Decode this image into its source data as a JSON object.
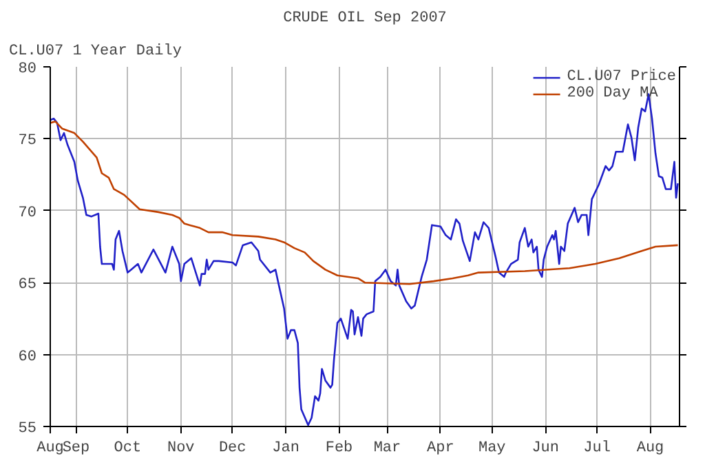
{
  "chart_data": {
    "type": "line",
    "title": "CRUDE OIL Sep 2007",
    "annotations": [
      "CL.U07 1 Year Daily"
    ],
    "xlim": [
      "2006-08-17",
      "2007-08-18"
    ],
    "ylim": [
      55,
      80
    ],
    "yticks": [
      55,
      60,
      65,
      70,
      75,
      80
    ],
    "xticks": [
      {
        "value": "2006-08-17",
        "label": "Aug"
      },
      {
        "value": "2006-09-01",
        "label": "Sep"
      },
      {
        "value": "2006-10-01",
        "label": "Oct"
      },
      {
        "value": "2006-11-01",
        "label": "Nov"
      },
      {
        "value": "2006-12-01",
        "label": "Dec"
      },
      {
        "value": "2007-01-01",
        "label": "Jan"
      },
      {
        "value": "2007-02-01",
        "label": "Feb"
      },
      {
        "value": "2007-03-01",
        "label": "Mar"
      },
      {
        "value": "2007-04-01",
        "label": "Apr"
      },
      {
        "value": "2007-05-01",
        "label": "May"
      },
      {
        "value": "2007-06-01",
        "label": "Jun"
      },
      {
        "value": "2007-07-01",
        "label": "Jul"
      },
      {
        "value": "2007-08-01",
        "label": "Aug"
      }
    ],
    "grid": true,
    "legend": "top right",
    "line_style": "solid",
    "series": [
      {
        "name": "CL.U07 Price",
        "color": "#2020c8",
        "x": [
          "2006-08-17",
          "2006-08-19",
          "2006-08-21",
          "2006-08-23",
          "2006-08-25",
          "2006-08-27",
          "2006-08-29",
          "2006-08-31",
          "2006-09-02",
          "2006-09-05",
          "2006-09-07",
          "2006-09-10",
          "2006-09-14",
          "2006-09-15",
          "2006-09-16",
          "2006-09-22",
          "2006-09-23",
          "2006-09-24",
          "2006-09-26",
          "2006-09-28",
          "2006-10-01",
          "2006-10-03",
          "2006-10-07",
          "2006-10-09",
          "2006-10-16",
          "2006-10-23",
          "2006-10-27",
          "2006-10-31",
          "2006-11-01",
          "2006-11-03",
          "2006-11-07",
          "2006-11-12",
          "2006-11-13",
          "2006-11-15",
          "2006-11-16",
          "2006-11-17",
          "2006-11-20",
          "2006-11-23",
          "2006-12-01",
          "2006-12-03",
          "2006-12-07",
          "2006-12-12",
          "2006-12-16",
          "2006-12-17",
          "2006-12-23",
          "2006-12-26",
          "2006-12-28",
          "2006-12-31",
          "2007-01-02",
          "2007-01-04",
          "2007-01-06",
          "2007-01-08",
          "2007-01-09",
          "2007-01-10",
          "2007-01-14",
          "2007-01-16",
          "2007-01-18",
          "2007-01-20",
          "2007-01-21",
          "2007-01-22",
          "2007-01-24",
          "2007-01-27",
          "2007-01-28",
          "2007-01-29",
          "2007-01-31",
          "2007-02-02",
          "2007-02-06",
          "2007-02-08",
          "2007-02-09",
          "2007-02-10",
          "2007-02-12",
          "2007-02-14",
          "2007-02-15",
          "2007-02-17",
          "2007-02-21",
          "2007-02-22",
          "2007-02-25",
          "2007-02-28",
          "2007-03-03",
          "2007-03-06",
          "2007-03-07",
          "2007-03-08",
          "2007-03-12",
          "2007-03-15",
          "2007-03-17",
          "2007-03-21",
          "2007-03-24",
          "2007-03-27",
          "2007-04-01",
          "2007-04-04",
          "2007-04-07",
          "2007-04-10",
          "2007-04-12",
          "2007-04-14",
          "2007-04-18",
          "2007-04-21",
          "2007-04-23",
          "2007-04-26",
          "2007-04-29",
          "2007-05-03",
          "2007-05-05",
          "2007-05-08",
          "2007-05-09",
          "2007-05-12",
          "2007-05-16",
          "2007-05-17",
          "2007-05-20",
          "2007-05-22",
          "2007-05-24",
          "2007-05-25",
          "2007-05-27",
          "2007-05-28",
          "2007-05-30",
          "2007-05-31",
          "2007-06-02",
          "2007-06-05",
          "2007-06-06",
          "2007-06-07",
          "2007-06-09",
          "2007-06-10",
          "2007-06-12",
          "2007-06-14",
          "2007-06-18",
          "2007-06-20",
          "2007-06-22",
          "2007-06-25",
          "2007-06-26",
          "2007-06-28",
          "2007-07-02",
          "2007-07-06",
          "2007-07-08",
          "2007-07-10",
          "2007-07-12",
          "2007-07-16",
          "2007-07-19",
          "2007-07-21",
          "2007-07-23",
          "2007-07-25",
          "2007-07-27",
          "2007-07-29",
          "2007-07-31",
          "2007-08-02",
          "2007-08-04",
          "2007-08-06",
          "2007-08-08",
          "2007-08-10",
          "2007-08-13",
          "2007-08-15",
          "2007-08-16",
          "2007-08-17"
        ],
        "values": [
          76.3,
          76.4,
          76.1,
          74.9,
          75.4,
          74.6,
          74.0,
          73.4,
          72.1,
          70.9,
          69.7,
          69.6,
          69.8,
          67.5,
          66.3,
          66.3,
          65.9,
          68.0,
          68.6,
          67.2,
          65.7,
          65.9,
          66.3,
          65.7,
          67.3,
          65.7,
          67.5,
          66.3,
          65.1,
          66.3,
          66.7,
          64.8,
          65.6,
          65.6,
          66.6,
          65.9,
          66.5,
          66.5,
          66.4,
          66.2,
          67.6,
          67.8,
          67.2,
          66.6,
          65.7,
          65.9,
          64.8,
          63.2,
          61.1,
          61.7,
          61.7,
          60.8,
          57.7,
          56.2,
          55.1,
          55.6,
          57.1,
          56.8,
          57.3,
          59.0,
          58.2,
          57.7,
          57.9,
          59.6,
          62.2,
          62.5,
          61.1,
          63.1,
          63.0,
          61.4,
          62.6,
          61.3,
          62.5,
          62.8,
          63.0,
          65.1,
          65.4,
          65.9,
          65.1,
          64.8,
          65.9,
          64.8,
          63.7,
          63.2,
          63.4,
          65.4,
          66.6,
          69.0,
          68.9,
          68.3,
          68.0,
          69.4,
          69.1,
          67.9,
          66.5,
          68.5,
          68.0,
          69.2,
          68.8,
          66.8,
          65.7,
          65.4,
          65.7,
          66.3,
          66.6,
          67.8,
          68.8,
          67.5,
          68.0,
          67.1,
          67.5,
          65.9,
          65.4,
          66.6,
          67.5,
          68.3,
          68.0,
          68.6,
          66.3,
          67.5,
          67.2,
          69.1,
          70.2,
          69.2,
          69.7,
          69.7,
          68.3,
          70.8,
          71.8,
          73.1,
          72.8,
          73.1,
          74.1,
          74.1,
          76.0,
          75.1,
          73.5,
          75.8,
          77.1,
          76.9,
          78.1,
          76.4,
          74.0,
          72.4,
          72.3,
          71.5,
          71.5,
          73.4,
          70.9,
          71.9
        ]
      },
      {
        "name": "200 Day MA",
        "color": "#c04000",
        "x": [
          "2006-08-17",
          "2006-08-20",
          "2006-08-24",
          "2006-08-31",
          "2006-09-05",
          "2006-09-13",
          "2006-09-16",
          "2006-09-20",
          "2006-09-23",
          "2006-09-29",
          "2006-10-08",
          "2006-10-19",
          "2006-10-27",
          "2006-10-31",
          "2006-11-03",
          "2006-11-06",
          "2006-11-12",
          "2006-11-17",
          "2006-11-25",
          "2006-12-01",
          "2006-12-16",
          "2006-12-26",
          "2006-12-31",
          "2007-01-06",
          "2007-01-12",
          "2007-01-17",
          "2007-01-24",
          "2007-01-31",
          "2007-02-12",
          "2007-02-16",
          "2007-03-14",
          "2007-03-28",
          "2007-04-08",
          "2007-04-17",
          "2007-04-23",
          "2007-05-20",
          "2007-06-15",
          "2007-06-30",
          "2007-07-14",
          "2007-07-27",
          "2007-08-04",
          "2007-08-17"
        ],
        "values": [
          76.1,
          76.2,
          75.7,
          75.4,
          74.8,
          73.7,
          72.6,
          72.3,
          71.5,
          71.1,
          70.1,
          69.9,
          69.7,
          69.5,
          69.1,
          69.0,
          68.8,
          68.5,
          68.5,
          68.3,
          68.2,
          68.0,
          67.8,
          67.4,
          67.1,
          66.5,
          65.9,
          65.5,
          65.3,
          65.0,
          64.9,
          65.1,
          65.3,
          65.5,
          65.7,
          65.8,
          66.0,
          66.3,
          66.7,
          67.2,
          67.5,
          67.6
        ]
      }
    ]
  }
}
